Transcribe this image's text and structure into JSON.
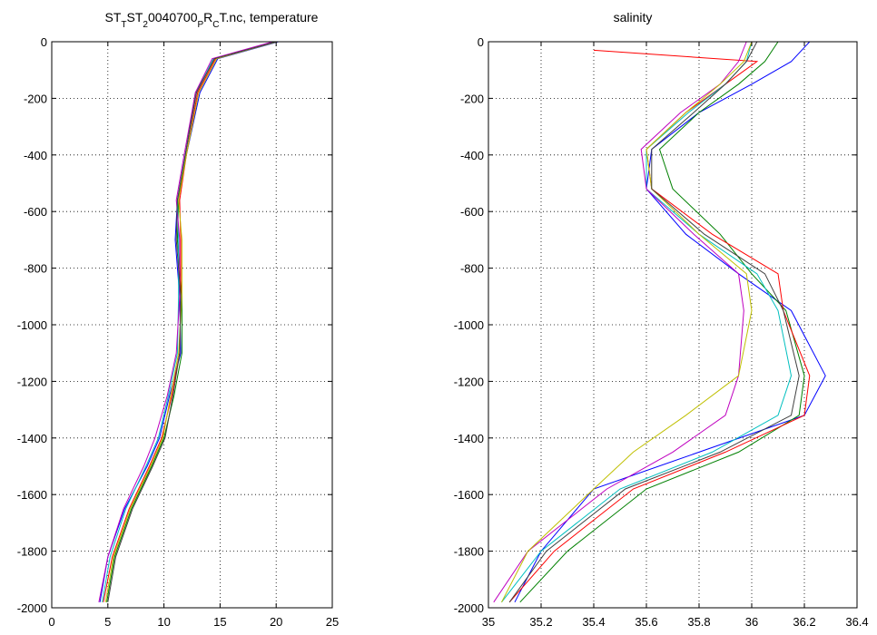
{
  "chart_data": [
    {
      "type": "line",
      "title_parts": [
        {
          "text": "ST",
          "sub": false
        },
        {
          "text": "T",
          "sub": true
        },
        {
          "text": "ST",
          "sub": false
        },
        {
          "text": "2",
          "sub": true
        },
        {
          "text": "0040700",
          "sub": false
        },
        {
          "text": "P",
          "sub": true
        },
        {
          "text": "R",
          "sub": false
        },
        {
          "text": "C",
          "sub": true
        },
        {
          "text": "T.nc, temperature",
          "sub": false
        }
      ],
      "xlabel": "",
      "ylabel": "",
      "xlim": [
        0,
        25
      ],
      "ylim": [
        -2000,
        0
      ],
      "xticks": [
        0,
        5,
        10,
        15,
        20,
        25
      ],
      "xtick_labels": [
        "0",
        "5",
        "10",
        "15",
        "20",
        "25"
      ],
      "yticks": [
        0,
        -200,
        -400,
        -600,
        -800,
        -1000,
        -1200,
        -1400,
        -1600,
        -1800,
        -2000
      ],
      "ytick_labels": [
        "0",
        "-200",
        "-400",
        "-600",
        "-800",
        "-1000",
        "-1200",
        "-1400",
        "-1600",
        "-1800",
        "-2000"
      ],
      "grid": true,
      "series": [
        {
          "color": "#0000ff",
          "x": [
            20.2,
            14.8,
            13.2,
            12.0,
            11.2,
            11.0,
            11.4,
            11.5,
            10.5,
            9.6,
            8.5,
            6.5,
            5.0,
            4.3
          ],
          "y": [
            0,
            -60,
            -180,
            -400,
            -560,
            -700,
            -900,
            -1100,
            -1250,
            -1400,
            -1500,
            -1650,
            -1820,
            -1980
          ]
        },
        {
          "color": "#008000",
          "x": [
            20.0,
            14.5,
            12.8,
            11.9,
            11.3,
            11.2,
            11.6,
            11.6,
            10.9,
            10.0,
            8.9,
            7.1,
            5.6,
            4.9
          ],
          "y": [
            0,
            -60,
            -180,
            -400,
            -560,
            -700,
            -900,
            -1100,
            -1250,
            -1400,
            -1500,
            -1650,
            -1820,
            -1980
          ]
        },
        {
          "color": "#ff0000",
          "x": [
            19.8,
            14.6,
            13.0,
            12.0,
            11.4,
            11.5,
            11.5,
            11.4,
            10.7,
            9.8,
            8.7,
            6.9,
            5.4,
            4.6
          ],
          "y": [
            0,
            -60,
            -180,
            -400,
            -560,
            -700,
            -900,
            -1100,
            -1250,
            -1400,
            -1500,
            -1650,
            -1820,
            -1980
          ]
        },
        {
          "color": "#00bfbf",
          "x": [
            19.9,
            14.4,
            12.9,
            11.9,
            11.2,
            11.3,
            11.3,
            11.2,
            10.4,
            9.5,
            8.4,
            6.6,
            5.2,
            4.5
          ],
          "y": [
            0,
            -60,
            -180,
            -400,
            -560,
            -700,
            -900,
            -1100,
            -1250,
            -1400,
            -1500,
            -1650,
            -1820,
            -1980
          ]
        },
        {
          "color": "#bf00bf",
          "x": [
            19.7,
            14.3,
            12.8,
            11.8,
            11.1,
            11.4,
            11.4,
            11.1,
            10.3,
            9.2,
            8.2,
            6.4,
            5.0,
            4.2
          ],
          "y": [
            0,
            -60,
            -180,
            -400,
            -560,
            -700,
            -900,
            -1100,
            -1250,
            -1400,
            -1500,
            -1650,
            -1820,
            -1980
          ]
        },
        {
          "color": "#bfbf00",
          "x": [
            20.1,
            14.7,
            13.1,
            12.0,
            11.3,
            11.6,
            11.6,
            11.3,
            10.6,
            9.9,
            8.8,
            7.0,
            5.5,
            4.8
          ],
          "y": [
            0,
            -60,
            -180,
            -400,
            -560,
            -700,
            -900,
            -1100,
            -1250,
            -1400,
            -1500,
            -1650,
            -1820,
            -1980
          ]
        },
        {
          "color": "#404040",
          "x": [
            20.0,
            14.5,
            12.9,
            11.9,
            11.2,
            11.1,
            11.5,
            11.4,
            10.8,
            10.1,
            9.0,
            7.2,
            5.7,
            5.0
          ],
          "y": [
            0,
            -60,
            -180,
            -400,
            -560,
            -700,
            -900,
            -1100,
            -1250,
            -1400,
            -1500,
            -1650,
            -1820,
            -1980
          ]
        }
      ]
    },
    {
      "type": "line",
      "title": "salinity",
      "xlabel": "",
      "ylabel": "",
      "xlim": [
        35,
        36.4
      ],
      "ylim": [
        -2000,
        0
      ],
      "xticks": [
        35,
        35.2,
        35.4,
        35.6,
        35.8,
        36,
        36.2,
        36.4
      ],
      "xtick_labels": [
        "35",
        "35.2",
        "35.4",
        "35.6",
        "35.8",
        "36",
        "36.2",
        "36.4"
      ],
      "yticks": [
        0,
        -200,
        -400,
        -600,
        -800,
        -1000,
        -1200,
        -1400,
        -1600,
        -1800,
        -2000
      ],
      "ytick_labels": [
        "0",
        "-200",
        "-400",
        "-600",
        "-800",
        "-1000",
        "-1200",
        "-1400",
        "-1600",
        "-1800",
        "-2000"
      ],
      "grid": true,
      "series": [
        {
          "color": "#0000ff",
          "x": [
            36.22,
            36.15,
            36.0,
            35.8,
            35.62,
            35.6,
            35.75,
            35.95,
            36.15,
            36.28,
            36.2,
            35.8,
            35.4,
            35.2,
            35.1
          ],
          "y": [
            0,
            -70,
            -150,
            -250,
            -380,
            -520,
            -680,
            -820,
            -950,
            -1180,
            -1320,
            -1450,
            -1580,
            -1800,
            -1980
          ]
        },
        {
          "color": "#008000",
          "x": [
            36.1,
            36.05,
            35.95,
            35.8,
            35.65,
            35.7,
            35.88,
            36.0,
            36.13,
            36.2,
            36.18,
            35.95,
            35.6,
            35.3,
            35.12
          ],
          "y": [
            0,
            -70,
            -150,
            -250,
            -380,
            -520,
            -680,
            -820,
            -950,
            -1180,
            -1320,
            -1450,
            -1580,
            -1800,
            -1980
          ]
        },
        {
          "color": "#ff0000",
          "x": [
            35.4,
            36.02,
            35.9,
            35.75,
            35.6,
            35.62,
            35.85,
            36.1,
            36.12,
            36.22,
            36.2,
            35.9,
            35.55,
            35.25,
            35.08
          ],
          "y": [
            -30,
            -70,
            -150,
            -250,
            -380,
            -520,
            -680,
            -820,
            -950,
            -1180,
            -1320,
            -1450,
            -1580,
            -1800,
            -1980
          ]
        },
        {
          "color": "#00bfbf",
          "x": [
            36.0,
            35.98,
            35.9,
            35.76,
            35.6,
            35.6,
            35.8,
            36.02,
            36.1,
            36.15,
            36.1,
            35.85,
            35.5,
            35.2,
            35.05
          ],
          "y": [
            0,
            -70,
            -150,
            -250,
            -380,
            -520,
            -680,
            -820,
            -950,
            -1180,
            -1320,
            -1450,
            -1580,
            -1800,
            -1980
          ]
        },
        {
          "color": "#bf00bf",
          "x": [
            35.98,
            35.95,
            35.88,
            35.73,
            35.58,
            35.6,
            35.78,
            35.95,
            35.97,
            35.95,
            35.9,
            35.7,
            35.45,
            35.15,
            35.02
          ],
          "y": [
            0,
            -70,
            -150,
            -250,
            -380,
            -520,
            -680,
            -820,
            -950,
            -1180,
            -1320,
            -1450,
            -1580,
            -1800,
            -1980
          ]
        },
        {
          "color": "#bfbf00",
          "x": [
            36.0,
            35.97,
            35.88,
            35.75,
            35.6,
            35.62,
            35.8,
            35.98,
            36.0,
            35.95,
            35.75,
            35.55,
            35.4,
            35.15,
            35.05
          ],
          "y": [
            0,
            -70,
            -150,
            -250,
            -380,
            -520,
            -680,
            -820,
            -950,
            -1180,
            -1320,
            -1450,
            -1580,
            -1800,
            -1980
          ]
        },
        {
          "color": "#404040",
          "x": [
            36.02,
            35.98,
            35.9,
            35.78,
            35.62,
            35.62,
            35.82,
            36.05,
            36.12,
            36.18,
            36.15,
            35.88,
            35.52,
            35.22,
            35.08
          ],
          "y": [
            0,
            -70,
            -150,
            -250,
            -380,
            -520,
            -680,
            -820,
            -950,
            -1180,
            -1320,
            -1450,
            -1580,
            -1800,
            -1980
          ]
        }
      ]
    }
  ]
}
